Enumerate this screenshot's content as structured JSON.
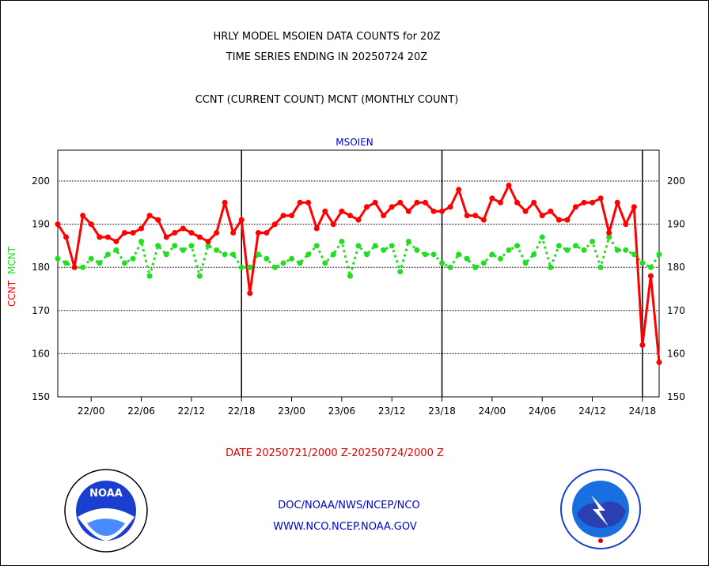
{
  "title_line1": "HRLY MODEL MSOIEN DATA COUNTS for 20Z",
  "title_line2": "TIME SERIES ENDING IN 20250724 20Z",
  "subtitle": "CCNT (CURRENT COUNT) MCNT (MONTHLY COUNT)",
  "date_range": "DATE 20250721/2000 Z-20250724/2000 Z",
  "footer_line1": "DOC/NOAA/NWS/NCEP/NCO",
  "footer_line2": "WWW.NCO.NCEP.NOAA.GOV",
  "logos": {
    "left": {
      "icon": "noaa-logo-icon",
      "text": "NOAA"
    },
    "right": {
      "icon": "nws-logo-icon",
      "ring_text": "NATIONAL WEATHER SERVICE"
    }
  },
  "colors": {
    "ccnt": "#ff0000",
    "mcnt": "#22dd22",
    "title_blue": "#0000cc",
    "date_red": "#dd0000"
  },
  "chart_data": {
    "type": "line",
    "title": "MSOIEN",
    "ylabel_ccnt": "CCNT",
    "ylabel_mcnt": "MCNT",
    "ylim": [
      150,
      205
    ],
    "yticks": [
      150,
      160,
      170,
      180,
      190,
      200
    ],
    "xlim": [
      0,
      72
    ],
    "xticks": [
      {
        "x": 4,
        "label": "22/00"
      },
      {
        "x": 10,
        "label": "22/06"
      },
      {
        "x": 16,
        "label": "22/12"
      },
      {
        "x": 22,
        "label": "22/18"
      },
      {
        "x": 28,
        "label": "23/00"
      },
      {
        "x": 34,
        "label": "23/06"
      },
      {
        "x": 40,
        "label": "23/12"
      },
      {
        "x": 46,
        "label": "23/18"
      },
      {
        "x": 52,
        "label": "24/00"
      },
      {
        "x": 58,
        "label": "24/06"
      },
      {
        "x": 64,
        "label": "24/12"
      },
      {
        "x": 70,
        "label": "24/18"
      }
    ],
    "day_dividers": [
      22,
      46,
      70
    ],
    "grid": true,
    "series": [
      {
        "name": "CCNT",
        "style": "solid",
        "values": [
          190,
          187,
          180,
          192,
          190,
          187,
          187,
          186,
          188,
          188,
          189,
          192,
          191,
          187,
          188,
          189,
          188,
          187,
          186,
          188,
          195,
          188,
          191,
          174,
          188,
          188,
          190,
          192,
          192,
          195,
          195,
          189,
          193,
          190,
          193,
          192,
          191,
          194,
          195,
          192,
          194,
          195,
          193,
          195,
          195,
          193,
          193,
          194,
          198,
          192,
          192,
          191,
          196,
          195,
          199,
          195,
          193,
          195,
          192,
          193,
          191,
          191,
          194,
          195,
          195,
          196,
          188,
          195,
          190,
          194,
          162,
          178,
          158
        ]
      },
      {
        "name": "MCNT",
        "style": "dotted",
        "values": [
          182,
          181,
          180,
          180,
          182,
          181,
          183,
          184,
          181,
          182,
          186,
          178,
          185,
          183,
          185,
          184,
          185,
          178,
          185,
          184,
          183,
          183,
          180,
          180,
          183,
          182,
          180,
          181,
          182,
          181,
          183,
          185,
          181,
          183,
          186,
          178,
          185,
          183,
          185,
          184,
          185,
          179,
          186,
          184,
          183,
          183,
          181,
          180,
          183,
          182,
          180,
          181,
          183,
          182,
          184,
          185,
          181,
          183,
          187,
          180,
          185,
          184,
          185,
          184,
          186,
          180,
          187,
          184,
          184,
          183,
          181,
          180,
          183
        ]
      }
    ]
  }
}
